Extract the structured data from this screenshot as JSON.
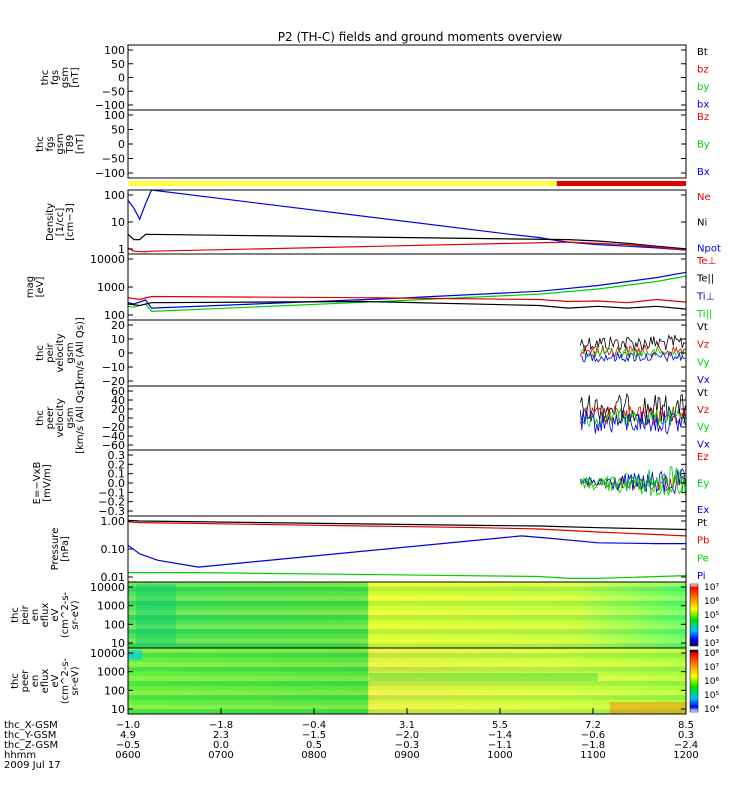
{
  "title": "P2 (TH-C) fields and ground moments overview",
  "colors": {
    "black": "#000000",
    "red": "#e00000",
    "green": "#00d000",
    "blue": "#0000e0",
    "yellow": "#ffff40"
  },
  "chart_data": [
    {
      "type": "line",
      "ylabel": [
        "thc",
        "fgs",
        "gsm",
        "[nT]"
      ],
      "ylim": [
        -100,
        100
      ],
      "yticks": [
        "100",
        "50",
        "0",
        "−50",
        "−100"
      ],
      "legend": [
        {
          "label": "Bt",
          "color": "black"
        },
        {
          "label": "bz",
          "color": "red"
        },
        {
          "label": "by",
          "color": "green"
        },
        {
          "label": "bx",
          "color": "blue"
        }
      ]
    },
    {
      "type": "line",
      "ylabel": [
        "thc",
        "fgs",
        "gsm",
        "T89",
        "[nT]"
      ],
      "ylim": [
        -100,
        100
      ],
      "yticks": [
        "100",
        "50",
        "0",
        "−50",
        "−100"
      ],
      "legend": [
        {
          "label": "Bz",
          "color": "red"
        },
        {
          "label": "By",
          "color": "green"
        },
        {
          "label": "Bx",
          "color": "blue"
        }
      ]
    },
    {
      "type": "bar",
      "series": [
        {
          "color": "yellow",
          "x": [
            -1.0,
            6.3
          ]
        },
        {
          "color": "red",
          "x": [
            6.3,
            8.5
          ]
        }
      ]
    },
    {
      "type": "line",
      "ylabel": [
        "Density",
        "[1/cc]",
        "[cm−3]"
      ],
      "scale": "log",
      "ylim": [
        0.7,
        200
      ],
      "yticks": [
        "100",
        "10",
        "1"
      ],
      "legend": [
        {
          "label": "Ne",
          "color": "red"
        },
        {
          "label": "Ni",
          "color": "black"
        },
        {
          "label": "Npot",
          "color": "blue"
        }
      ],
      "series": [
        {
          "color": "blue",
          "x": [
            -1.0,
            -0.9,
            -0.8,
            -0.7,
            -0.6,
            5.5,
            6.0,
            6.2,
            6.5,
            7.0,
            7.5,
            8.0,
            8.5
          ],
          "y": [
            80,
            40,
            15,
            60,
            200,
            4,
            3,
            2.5,
            2,
            1.6,
            1.4,
            1.2,
            1.0
          ]
        },
        {
          "color": "black",
          "x": [
            -1.0,
            -0.9,
            -0.8,
            -0.7,
            6.5,
            7.0,
            7.5,
            8.0,
            8.5
          ],
          "y": [
            4,
            2.5,
            2.5,
            4,
            2.5,
            2.2,
            1.8,
            1.4,
            1.1
          ]
        },
        {
          "color": "red",
          "x": [
            -1.0,
            -0.9,
            -0.7,
            -0.6,
            6.5,
            7.0,
            7.5,
            8.0,
            8.5
          ],
          "y": [
            1.2,
            0.9,
            0.85,
            0.9,
            2.0,
            1.8,
            1.6,
            1.3,
            1.0
          ]
        }
      ]
    },
    {
      "type": "line",
      "ylabel": [
        "mag",
        "[eV]"
      ],
      "scale": "log",
      "ylim": [
        50,
        10000
      ],
      "yticks": [
        "10000",
        "1000",
        "100"
      ],
      "legend": [
        {
          "label": "Te⊥",
          "color": "red"
        },
        {
          "label": "Te||",
          "color": "black"
        },
        {
          "label": "Ti⊥",
          "color": "blue"
        },
        {
          "label": "Ti||",
          "color": "green"
        }
      ],
      "series": [
        {
          "color": "blue",
          "x": [
            -1.0,
            -0.9,
            -0.7,
            -0.6,
            3.5,
            6.0,
            7.0,
            8.0,
            8.5
          ],
          "y": [
            200,
            180,
            250,
            130,
            280,
            500,
            800,
            1500,
            2300
          ]
        },
        {
          "color": "green",
          "x": [
            -1.0,
            -0.9,
            -0.7,
            -0.6,
            3.5,
            6.0,
            7.0,
            8.0,
            8.5
          ],
          "y": [
            150,
            140,
            180,
            100,
            230,
            400,
            600,
            1100,
            1700
          ]
        },
        {
          "color": "red",
          "x": [
            -1.0,
            -0.8,
            -0.6,
            3.0,
            6.0,
            6.5,
            7.0,
            7.5,
            8.0,
            8.5
          ],
          "y": [
            300,
            260,
            330,
            300,
            260,
            220,
            230,
            200,
            260,
            210
          ]
        },
        {
          "color": "black",
          "x": [
            -1.0,
            -0.8,
            -0.6,
            3.0,
            6.0,
            6.5,
            7.0,
            7.5,
            8.0,
            8.5
          ],
          "y": [
            180,
            160,
            200,
            220,
            160,
            130,
            150,
            130,
            150,
            120
          ]
        }
      ]
    },
    {
      "type": "line",
      "ylabel": [
        "thc",
        "peir",
        "velocity",
        "gsm",
        "[km/s (All Qs)]"
      ],
      "ylim": [
        -20,
        20
      ],
      "yticks": [
        "20",
        "10",
        "0",
        "−10",
        "−20"
      ],
      "legend": [
        {
          "label": "Vt",
          "color": "black"
        },
        {
          "label": "Vz",
          "color": "red"
        },
        {
          "label": "Vy",
          "color": "green"
        },
        {
          "label": "Vx",
          "color": "blue"
        }
      ]
    },
    {
      "type": "line",
      "ylabel": [
        "thc",
        "peer",
        "velocity",
        "gsm",
        "[km/s (All Qs)]"
      ],
      "ylim": [
        -60,
        60
      ],
      "yticks": [
        "60",
        "40",
        "20",
        "0",
        "−20",
        "−40",
        "−60"
      ],
      "legend": [
        {
          "label": "Vt",
          "color": "black"
        },
        {
          "label": "Vz",
          "color": "red"
        },
        {
          "label": "Vy",
          "color": "green"
        },
        {
          "label": "Vx",
          "color": "blue"
        }
      ]
    },
    {
      "type": "line",
      "ylabel": [
        "E=−VxB",
        "[mV/m]"
      ],
      "ylim": [
        -0.3,
        0.3
      ],
      "yticks": [
        "0.3",
        "0.2",
        "0.1",
        "0.0",
        "−0.1",
        "−0.2",
        "−0.3"
      ],
      "legend": [
        {
          "label": "Ez",
          "color": "red"
        },
        {
          "label": "Ey",
          "color": "green"
        },
        {
          "label": "Ex",
          "color": "blue"
        }
      ]
    },
    {
      "type": "line",
      "ylabel": [
        "Pressure",
        "[nPa]"
      ],
      "scale": "log",
      "ylim": [
        0.01,
        1.3
      ],
      "yticks": [
        "1.00",
        "0.10",
        "0.01"
      ],
      "legend": [
        {
          "label": "Pt",
          "color": "black"
        },
        {
          "label": "Pb",
          "color": "red"
        },
        {
          "label": "Pe",
          "color": "green"
        },
        {
          "label": "Pi",
          "color": "blue"
        }
      ],
      "series": [
        {
          "color": "black",
          "x": [
            -1.0,
            -0.8,
            5.0,
            6.0,
            7.0,
            8.5
          ],
          "y": [
            0.95,
            0.9,
            0.65,
            0.62,
            0.55,
            0.48
          ]
        },
        {
          "color": "red",
          "x": [
            -1.0,
            -0.8,
            5.0,
            6.0,
            7.0,
            8.5
          ],
          "y": [
            0.85,
            0.8,
            0.55,
            0.5,
            0.4,
            0.3
          ]
        },
        {
          "color": "blue",
          "x": [
            -1.0,
            -0.8,
            -0.5,
            0.2,
            5.7,
            6.2,
            7.0,
            8.0,
            8.5
          ],
          "y": [
            0.15,
            0.08,
            0.05,
            0.03,
            0.3,
            0.25,
            0.18,
            0.17,
            0.17
          ]
        },
        {
          "color": "green",
          "x": [
            -1.0,
            0.2,
            6.0,
            6.5,
            7.0,
            8.5
          ],
          "y": [
            0.02,
            0.02,
            0.015,
            0.013,
            0.013,
            0.016
          ]
        }
      ]
    },
    {
      "type": "heatmap",
      "ylabel": [
        "thc",
        "peir",
        "en",
        "eflux",
        "eV",
        "(cm^2-s-",
        "sr-eV)"
      ],
      "scale": "log",
      "ylim": [
        7,
        30000
      ],
      "yticks": [
        "10000",
        "1000",
        "100",
        "10"
      ],
      "colorbar": {
        "ticks": [
          "10⁷",
          "10⁶",
          "10⁵",
          "10⁴",
          "10³"
        ]
      }
    },
    {
      "type": "heatmap",
      "ylabel": [
        "thc",
        "peer",
        "en",
        "eflux",
        "eV",
        "(cm^2-s-",
        "sr-eV)"
      ],
      "scale": "log",
      "ylim": [
        7,
        30000
      ],
      "yticks": [
        "10000",
        "1000",
        "100",
        "10"
      ],
      "colorbar": {
        "ticks": [
          "10⁸",
          "10⁷",
          "10⁶",
          "10⁵",
          "10⁴"
        ]
      }
    }
  ],
  "xaxis": {
    "rows": [
      {
        "label": "thc_X-GSM",
        "values": [
          "−1.0",
          "−1.8",
          "−0.4",
          "3.1",
          "5.5",
          "7.2",
          "8.5"
        ]
      },
      {
        "label": "thc_Y-GSM",
        "values": [
          "4.9",
          "2.3",
          "−1.5",
          "−2.0",
          "−1.4",
          "−0.6",
          "0.3"
        ]
      },
      {
        "label": "thc_Z-GSM",
        "values": [
          "−0.5",
          "0.0",
          "0.5",
          "−0.3",
          "−1.1",
          "−1.8",
          "−2.4"
        ]
      },
      {
        "label": "hhmm",
        "values": [
          "0600",
          "0700",
          "0800",
          "0900",
          "1000",
          "1100",
          "1200"
        ]
      }
    ],
    "date": "2009 Jul 17"
  }
}
